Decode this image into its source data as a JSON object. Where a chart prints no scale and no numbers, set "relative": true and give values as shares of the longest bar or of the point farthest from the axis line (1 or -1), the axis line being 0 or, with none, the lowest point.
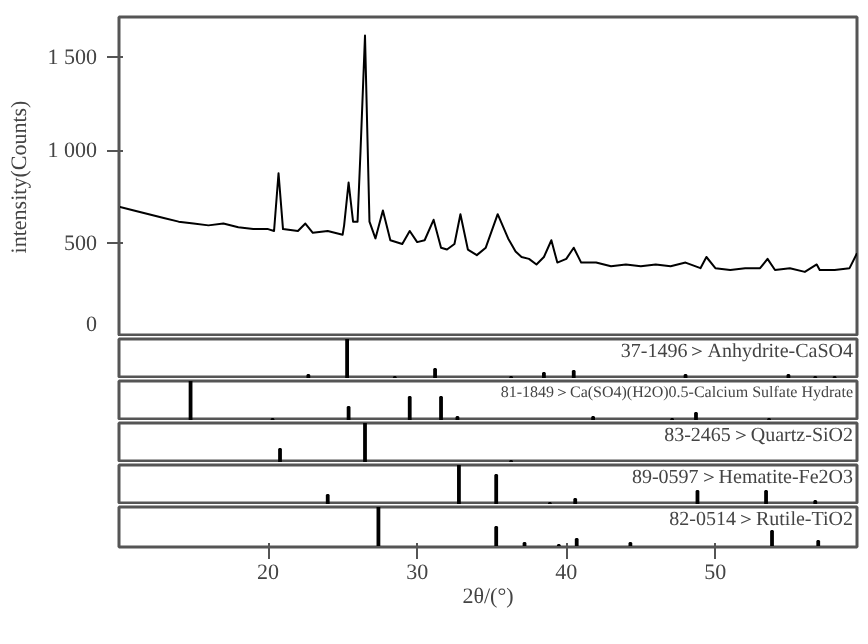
{
  "chart_data": [
    {
      "type": "line",
      "ylabel": "intensity(Counts)",
      "xlim": [
        10,
        59.5
      ],
      "ylim": [
        0,
        1720
      ],
      "yticks": [
        0,
        500,
        {
          "value": 1000,
          "label": "1 000"
        },
        {
          "value": 1500,
          "label": "1 500"
        }
      ],
      "tick_labels": "y",
      "grid": false,
      "marker": "none",
      "line_style": "solid",
      "series": [
        {
          "color": "#000000",
          "x": [
            10,
            11,
            12,
            13,
            14,
            15,
            16,
            17,
            18,
            19,
            20,
            20.4,
            20.7,
            21.0,
            22,
            22.5,
            23,
            24,
            25,
            25.1,
            25.4,
            25.7,
            26.0,
            26.2,
            26.5,
            26.8,
            27.2,
            27.7,
            28.2,
            29,
            29.5,
            30,
            30.5,
            31.1,
            31.6,
            32,
            32.5,
            32.9,
            33.4,
            34,
            34.6,
            35.4,
            36.1,
            36.6,
            37,
            37.5,
            38,
            38.5,
            39.0,
            39.4,
            40,
            40.5,
            41,
            42,
            43,
            44,
            45,
            46,
            47,
            48,
            49,
            49.4,
            50,
            51,
            52,
            53,
            53.5,
            54,
            55,
            56,
            56.8,
            57,
            58,
            59,
            59.5
          ],
          "values": [
            700,
            680,
            660,
            640,
            620,
            610,
            600,
            610,
            590,
            580,
            580,
            570,
            880,
            580,
            570,
            610,
            560,
            570,
            550,
            600,
            830,
            620,
            620,
            1000,
            1620,
            620,
            530,
            680,
            520,
            500,
            570,
            510,
            520,
            630,
            480,
            470,
            500,
            660,
            470,
            440,
            480,
            660,
            530,
            460,
            430,
            420,
            390,
            430,
            520,
            400,
            420,
            480,
            400,
            400,
            380,
            390,
            380,
            390,
            380,
            400,
            370,
            430,
            370,
            360,
            370,
            370,
            420,
            360,
            370,
            350,
            390,
            360,
            360,
            370,
            450
          ]
        }
      ]
    },
    {
      "type": "bar",
      "title": "37-1496＞Anhydrite-CaSO4",
      "relative": true,
      "xlim": [
        10,
        59.5
      ],
      "tick_labels": false,
      "color": "#000000",
      "x": [
        22.7,
        25.3,
        28.5,
        31.2,
        36.3,
        38.5,
        40.5,
        48.0,
        54.9,
        56.7,
        58.0
      ],
      "values": [
        0.1,
        1,
        0.05,
        0.25,
        0.05,
        0.15,
        0.2,
        0.1,
        0.1,
        0.05,
        0.05
      ]
    },
    {
      "type": "bar",
      "title": "81-1849＞Ca(SO4)(H2O)0.5-Calcium Sulfate Hydrate",
      "relative": true,
      "xlim": [
        10,
        59.5
      ],
      "tick_labels": false,
      "color": "#000000",
      "x": [
        14.8,
        20.3,
        25.4,
        29.5,
        31.6,
        32.7,
        41.8,
        47.1,
        48.7,
        53.6
      ],
      "values": [
        1,
        0.05,
        0.35,
        0.6,
        0.6,
        0.1,
        0.1,
        0.05,
        0.2,
        0.05
      ]
    },
    {
      "type": "bar",
      "title": "83-2465＞Quartz-SiO2",
      "relative": true,
      "xlim": [
        10,
        59.5
      ],
      "tick_labels": false,
      "color": "#000000",
      "x": [
        20.8,
        26.5,
        36.3
      ],
      "values": [
        0.35,
        1,
        0.05
      ]
    },
    {
      "type": "bar",
      "title": "89-0597＞Hematite-Fe2O3",
      "relative": true,
      "xlim": [
        10,
        59.5
      ],
      "tick_labels": false,
      "color": "#000000",
      "x": [
        24.0,
        32.8,
        35.3,
        38.9,
        40.6,
        48.8,
        53.4,
        56.7
      ],
      "values": [
        0.25,
        1,
        0.75,
        0.05,
        0.15,
        0.35,
        0.35,
        0.1
      ]
    },
    {
      "type": "bar",
      "title": "82-0514＞Rutile-TiO2",
      "relative": true,
      "xlim": [
        10,
        59.5
      ],
      "xticks": [
        20,
        30,
        40,
        50
      ],
      "xlabel": "2θ/(°)",
      "tick_labels": "x",
      "color": "#000000",
      "x": [
        27.4,
        35.3,
        37.2,
        39.5,
        40.7,
        44.3,
        53.8,
        56.9
      ],
      "values": [
        1,
        0.5,
        0.1,
        0.05,
        0.2,
        0.1,
        0.4,
        0.15
      ]
    }
  ]
}
